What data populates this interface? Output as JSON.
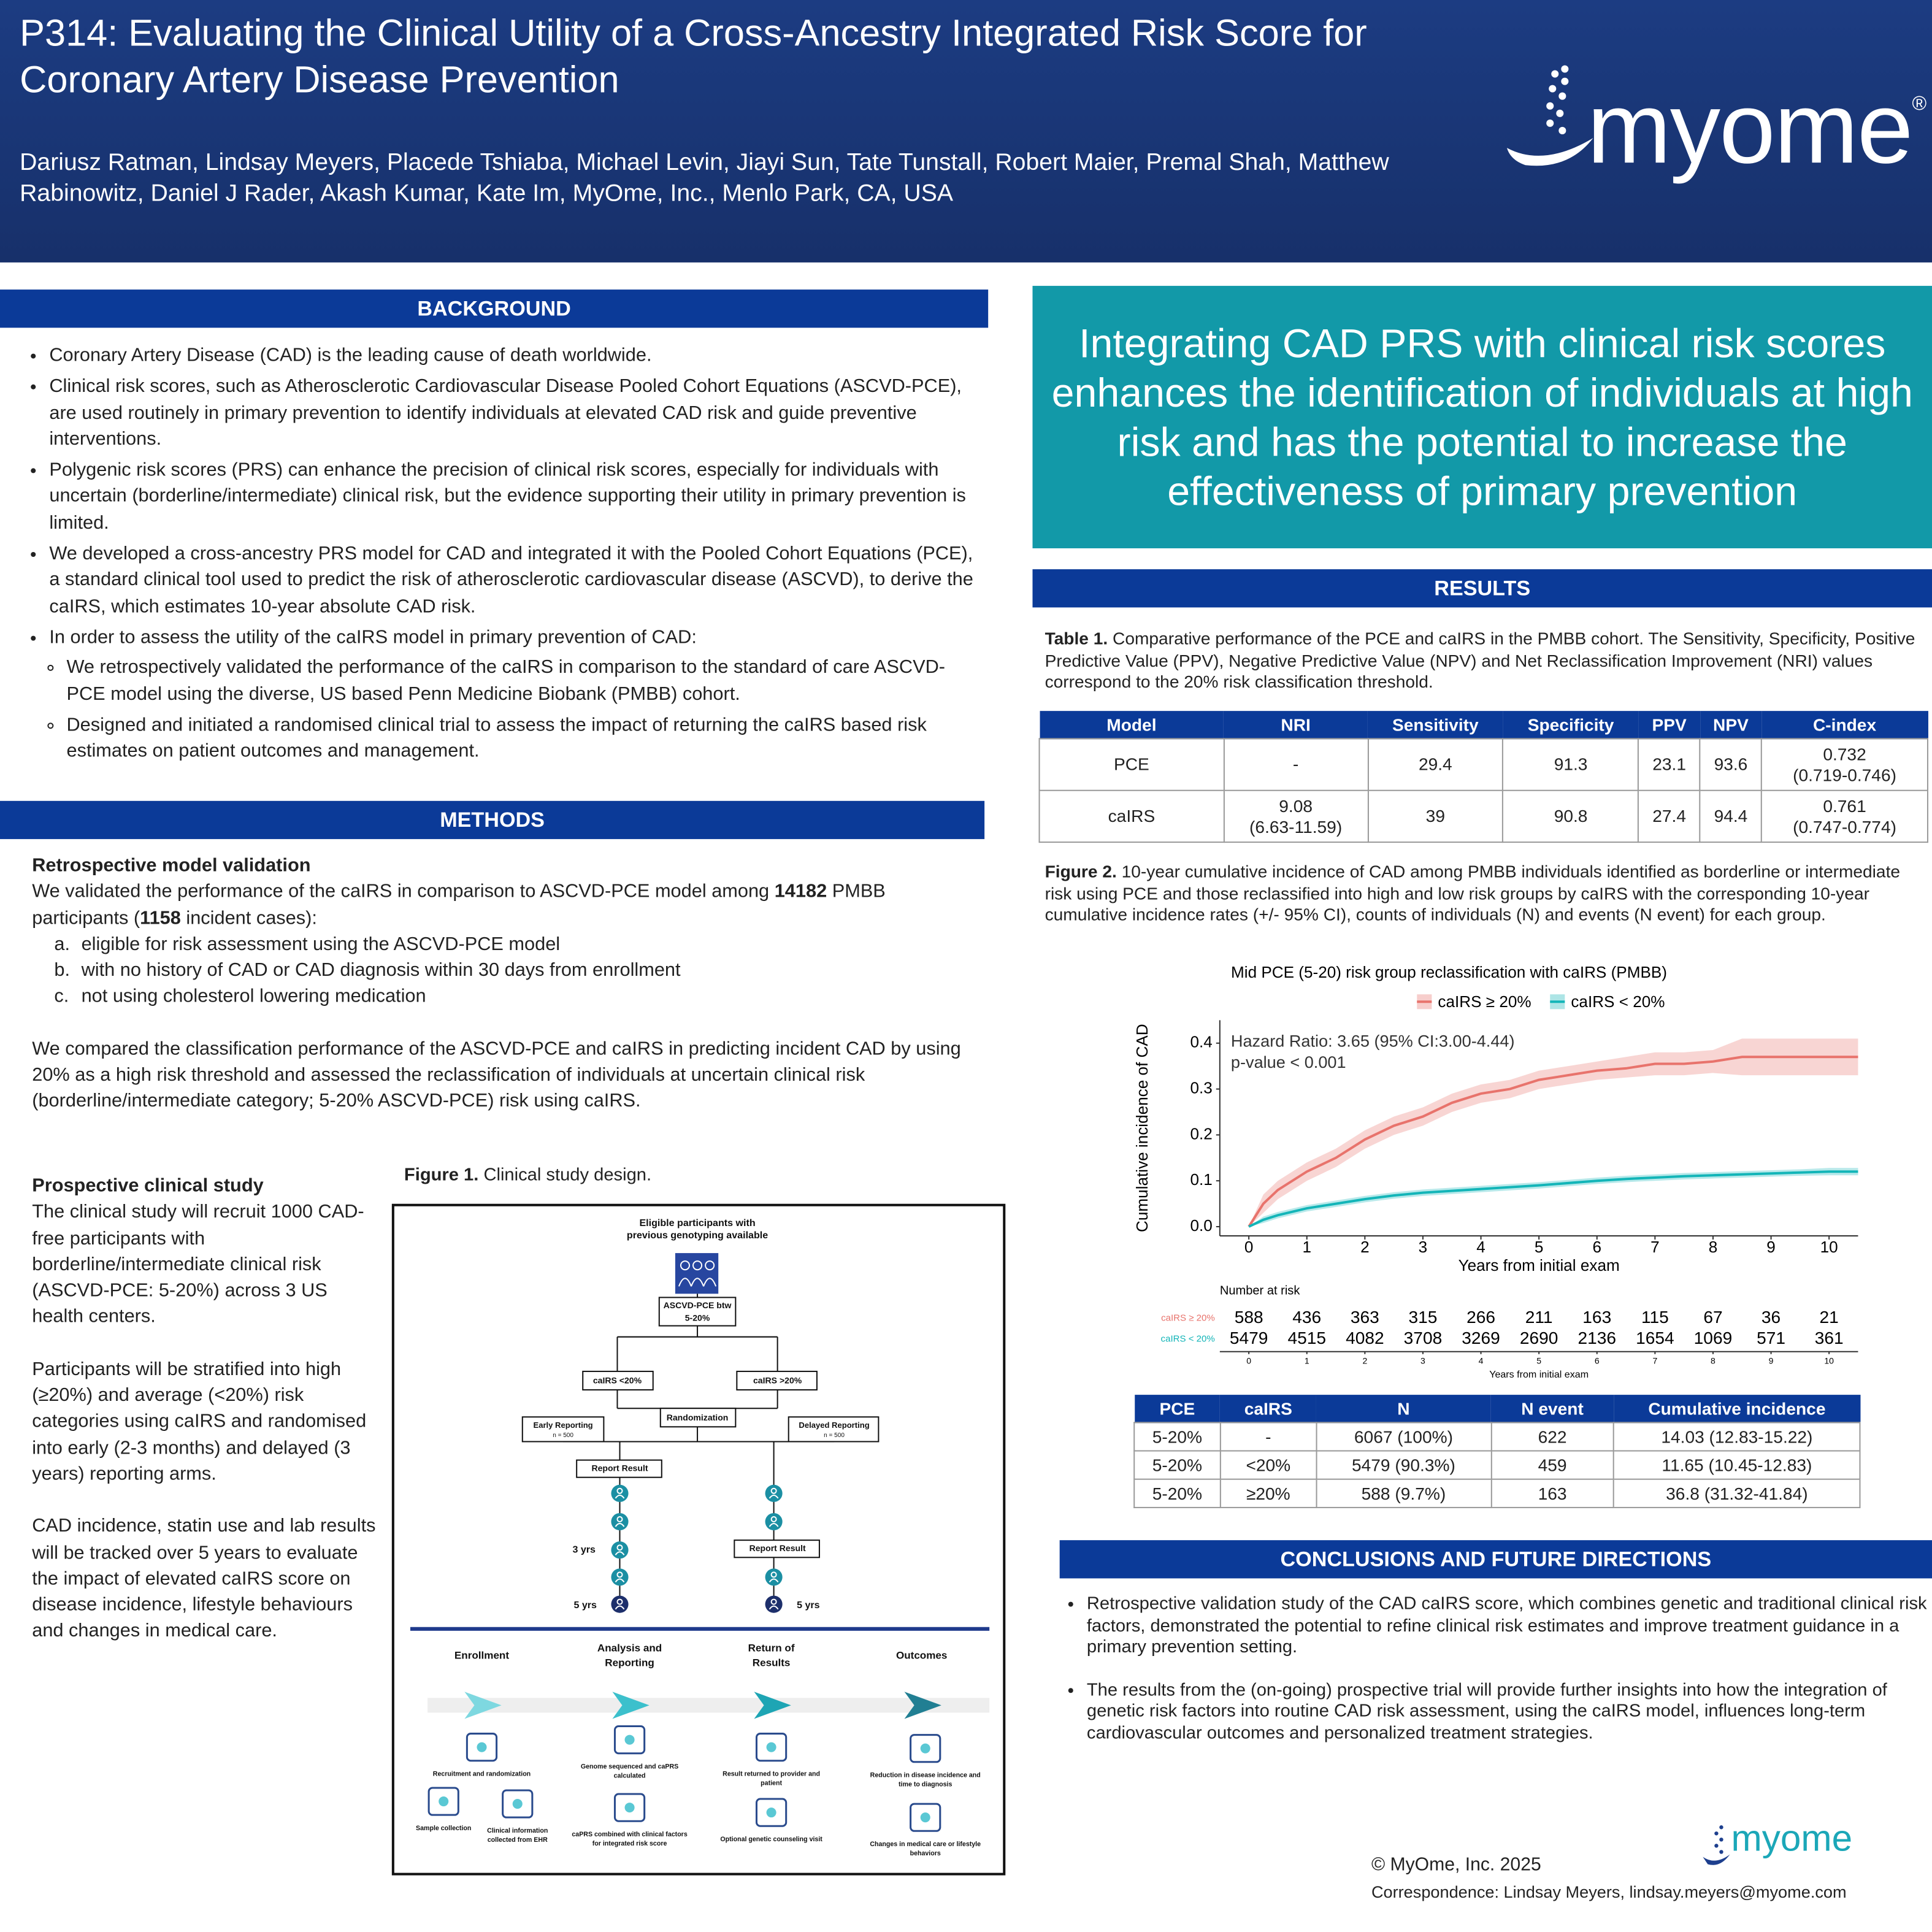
{
  "header": {
    "title": "P314: Evaluating the Clinical Utility of a Cross-Ancestry Integrated Risk Score for Coronary Artery Disease Prevention",
    "authors": "Dariusz Ratman, Lindsay Meyers, Placede Tshiaba, Michael Levin, Jiayi Sun, Tate Tunstall, Robert Maier, Premal Shah, Matthew Rabinowitz, Daniel J Rader, Akash Kumar, Kate Im, MyOme, Inc., Menlo Park, CA, USA",
    "logo": "myome",
    "logo_mark": "®"
  },
  "background": {
    "heading": "BACKGROUND",
    "items": [
      {
        "text": "Coronary Artery Disease (CAD) is the leading cause of death worldwide."
      },
      {
        "text": "Clinical risk scores, such as Atherosclerotic Cardiovascular Disease Pooled Cohort Equations (ASCVD-PCE), are used routinely in primary prevention to identify individuals at elevated CAD risk and guide preventive interventions."
      },
      {
        "text": "Polygenic risk scores (PRS) can enhance the precision of clinical risk scores, especially for individuals with uncertain (borderline/intermediate) clinical risk, but the evidence supporting their utility in primary prevention is limited."
      },
      {
        "text": "We developed a cross-ancestry PRS model for CAD and integrated it with the Pooled Cohort Equations (PCE), a standard clinical tool used to predict the risk of atherosclerotic cardiovascular disease (ASCVD), to derive the caIRS, which estimates 10-year absolute CAD risk."
      },
      {
        "text": "In order to assess the utility of the caIRS model in primary prevention of CAD:",
        "subitems": [
          "We retrospectively validated the performance of the caIRS in comparison to the standard of care ASCVD-PCE model using the diverse, US based Penn Medicine Biobank (PMBB) cohort.",
          "Designed and initiated a randomised clinical trial to assess the impact of returning the caIRS based risk estimates on patient outcomes and management."
        ]
      }
    ]
  },
  "methods": {
    "heading": "METHODS",
    "retro_title": "Retrospective model validation",
    "intro": [
      "We validated the performance of the caIRS in comparison to ASCVD-PCE model among ",
      "14182",
      " PMBB participants (",
      "1158",
      " incident cases):"
    ],
    "criteria": [
      {
        "marker": "a.",
        "text": "eligible for risk assessment using the ASCVD-PCE model"
      },
      {
        "marker": "b.",
        "text": "with no history of CAD or CAD diagnosis within 30 days from enrollment"
      },
      {
        "marker": "c.",
        "text": "not using cholesterol lowering medication"
      }
    ],
    "comparison": "We compared the classification performance of the ASCVD-PCE and caIRS in predicting incident CAD by using 20% as a high risk threshold and assessed the reclassification of individuals at uncertain clinical risk (borderline/intermediate category; 5-20% ASCVD-PCE) risk using caIRS.",
    "prospective_title": "Prospective clinical study",
    "prospective": [
      "The clinical study will recruit 1000 CAD-free participants with borderline/intermediate clinical risk (ASCVD-PCE: 5-20%) across 3 US health centers.",
      "Participants will be stratified into high (≥20%) and average (<20%) risk categories using caIRS and randomised into early (2-3 months) and delayed (3 years)  reporting arms.",
      "CAD incidence, statin use and lab results will be tracked over 5 years to evaluate the impact of elevated caIRS score on disease incidence, lifestyle behaviours and changes in medical care."
    ]
  },
  "figure1": {
    "label": "Figure 1.",
    "caption": "Clinical study design.",
    "eligible": [
      "Eligible participants with",
      "previous genotyping available"
    ],
    "pce_box": [
      "ASCVD-PCE btw",
      "5-20%"
    ],
    "low_arm": "caIRS <20%",
    "high_arm": "caIRS >20%",
    "randomization": "Randomization",
    "early": [
      "Early Reporting",
      "n = 500"
    ],
    "delayed": [
      "Delayed Reporting",
      "n = 500"
    ],
    "report_left": "Report Result",
    "report_right": "Report Result",
    "yrs3": "3 yrs",
    "yrs5_left": "5 yrs",
    "yrs5_right": "5 yrs",
    "stages": [
      {
        "title": [
          "Enrollment"
        ],
        "captions": [
          [
            "Recruitment and randomization"
          ],
          [
            "Sample collection"
          ],
          [
            "Clinical information",
            "collected from EHR"
          ]
        ]
      },
      {
        "title": [
          "Analysis and",
          "Reporting"
        ],
        "captions": [
          [
            "Genome sequenced and caPRS",
            "calculated"
          ],
          [
            "caPRS combined with clinical factors",
            "for integrated risk score"
          ]
        ]
      },
      {
        "title": [
          "Return of",
          "Results"
        ],
        "captions": [
          [
            "Result returned to provider and",
            "patient"
          ],
          [
            "Optional genetic counseling visit"
          ]
        ]
      },
      {
        "title": [
          "Outcomes"
        ],
        "captions": [
          [
            "Reduction in disease incidence and",
            "time to diagnosis"
          ],
          [
            "Changes in medical care or lifestyle",
            "behaviors"
          ]
        ]
      }
    ]
  },
  "key_message": "Integrating CAD PRS with clinical risk scores enhances the identification of individuals at high risk and has the potential to increase the effectiveness of primary prevention",
  "results": {
    "heading": "RESULTS",
    "table1": {
      "label": "Table 1.",
      "caption": "Comparative performance of the PCE and caIRS in the PMBB cohort. The Sensitivity, Specificity, Positive Predictive Value (PPV), Negative Predictive Value (NPV) and Net Reclassification Improvement (NRI) values correspond to the 20% risk classification threshold.",
      "columns": [
        "Model",
        "NRI",
        "Sensitivity",
        "Specificity",
        "PPV",
        "NPV",
        "C-index"
      ],
      "rows": [
        [
          "PCE",
          "-",
          "29.4",
          "91.3",
          "23.1",
          "93.6",
          [
            "0.732",
            "(0.719-0.746)"
          ]
        ],
        [
          "caIRS",
          [
            "9.08",
            "(6.63-11.59)"
          ],
          "39",
          "90.8",
          "27.4",
          "94.4",
          [
            "0.761",
            "(0.747-0.774)"
          ]
        ]
      ]
    },
    "figure2": {
      "label": "Figure 2.",
      "caption": "10-year cumulative incidence of CAD among PMBB individuals identified as borderline or intermediate risk using PCE and those reclassified into high and low risk groups by caIRS with the corresponding 10-year cumulative incidence rates (+/- 95% CI), counts of individuals (N) and events (N event) for each group."
    },
    "table2": {
      "columns": [
        "PCE",
        "caIRS",
        "N",
        "N event",
        "Cumulative incidence"
      ],
      "rows": [
        [
          "5-20%",
          "-",
          "6067 (100%)",
          "622",
          "14.03 (12.83-15.22)"
        ],
        [
          "5-20%",
          "<20%",
          "5479 (90.3%)",
          "459",
          "11.65 (10.45-12.83)"
        ],
        [
          "5-20%",
          "≥20%",
          "588 (9.7%)",
          "163",
          "36.8 (31.32-41.84)"
        ]
      ]
    }
  },
  "chart_data": {
    "type": "line",
    "title": "Mid PCE (5-20) risk group reclassification with caIRS (PMBB)",
    "x_label": "Years from initial exam",
    "y_label": "Cumulative incidence of CAD",
    "annotations": [
      "Hazard Ratio: 3.65 (95% CI:3.00-4.44)",
      "p-value < 0.001"
    ],
    "x": [
      0,
      0.25,
      0.5,
      1,
      1.5,
      2,
      2.5,
      3,
      3.5,
      4,
      4.5,
      5,
      5.5,
      6,
      6.5,
      7,
      7.5,
      8,
      8.5,
      9,
      9.5,
      10,
      10.5
    ],
    "series": [
      {
        "name": "caIRS ≥ 20%",
        "color": "#e8736c",
        "values": [
          0,
          0.05,
          0.08,
          0.12,
          0.15,
          0.19,
          0.22,
          0.24,
          0.27,
          0.29,
          0.3,
          0.32,
          0.33,
          0.34,
          0.345,
          0.355,
          0.355,
          0.36,
          0.37,
          0.37,
          0.37,
          0.37,
          0.37
        ],
        "lower": [
          0,
          0.03,
          0.06,
          0.1,
          0.13,
          0.17,
          0.2,
          0.22,
          0.25,
          0.27,
          0.28,
          0.3,
          0.31,
          0.32,
          0.325,
          0.33,
          0.33,
          0.335,
          0.33,
          0.33,
          0.33,
          0.33,
          0.33
        ],
        "upper": [
          0,
          0.07,
          0.1,
          0.14,
          0.17,
          0.21,
          0.24,
          0.26,
          0.29,
          0.31,
          0.32,
          0.34,
          0.35,
          0.36,
          0.37,
          0.38,
          0.38,
          0.385,
          0.41,
          0.41,
          0.41,
          0.41,
          0.41
        ]
      },
      {
        "name": "caIRS < 20%",
        "color": "#13b5b8",
        "values": [
          0,
          0.015,
          0.025,
          0.04,
          0.05,
          0.06,
          0.068,
          0.074,
          0.078,
          0.082,
          0.086,
          0.09,
          0.095,
          0.1,
          0.104,
          0.107,
          0.11,
          0.112,
          0.114,
          0.116,
          0.118,
          0.12,
          0.12
        ],
        "lower": [
          0,
          0.008,
          0.018,
          0.033,
          0.043,
          0.053,
          0.061,
          0.067,
          0.071,
          0.075,
          0.079,
          0.083,
          0.088,
          0.093,
          0.097,
          0.1,
          0.103,
          0.105,
          0.107,
          0.109,
          0.111,
          0.112,
          0.112
        ],
        "upper": [
          0,
          0.022,
          0.032,
          0.047,
          0.057,
          0.067,
          0.075,
          0.081,
          0.085,
          0.089,
          0.093,
          0.097,
          0.102,
          0.107,
          0.111,
          0.114,
          0.117,
          0.119,
          0.121,
          0.123,
          0.125,
          0.128,
          0.128
        ]
      }
    ],
    "xlim": [
      -0.5,
      10.5
    ],
    "ylim": [
      -0.02,
      0.45
    ],
    "xticks": [
      0,
      1,
      2,
      3,
      4,
      5,
      6,
      7,
      8,
      9,
      10
    ],
    "yticks": [
      {
        "value": 0,
        "label": "0.0"
      },
      0.1,
      0.2,
      0.3,
      0.4
    ],
    "grid": false,
    "risk_table": {
      "title": "Number at risk",
      "x_label": "Years from initial exam",
      "rows": [
        [
          588,
          436,
          363,
          315,
          266,
          211,
          163,
          115,
          67,
          36,
          21
        ],
        [
          5479,
          4515,
          4082,
          3708,
          3269,
          2690,
          2136,
          1654,
          1069,
          571,
          361
        ]
      ]
    }
  },
  "conclusions": {
    "heading": "CONCLUSIONS AND FUTURE DIRECTIONS",
    "items": [
      "Retrospective validation study of the CAD caIRS score, which combines genetic and traditional clinical risk factors, demonstrated the potential to refine clinical risk estimates and improve treatment guidance in a primary prevention setting.",
      "The results from the (on-going) prospective trial will provide further insights into how the integration of genetic risk factors into routine CAD risk assessment, using the caIRS model, influences long-term cardiovascular outcomes and personalized treatment strategies."
    ]
  },
  "footer": {
    "copyright": "© MyOme, Inc. 2025",
    "correspondence": "Correspondence: Lindsay Meyers, lindsay.meyers@myome.com"
  }
}
